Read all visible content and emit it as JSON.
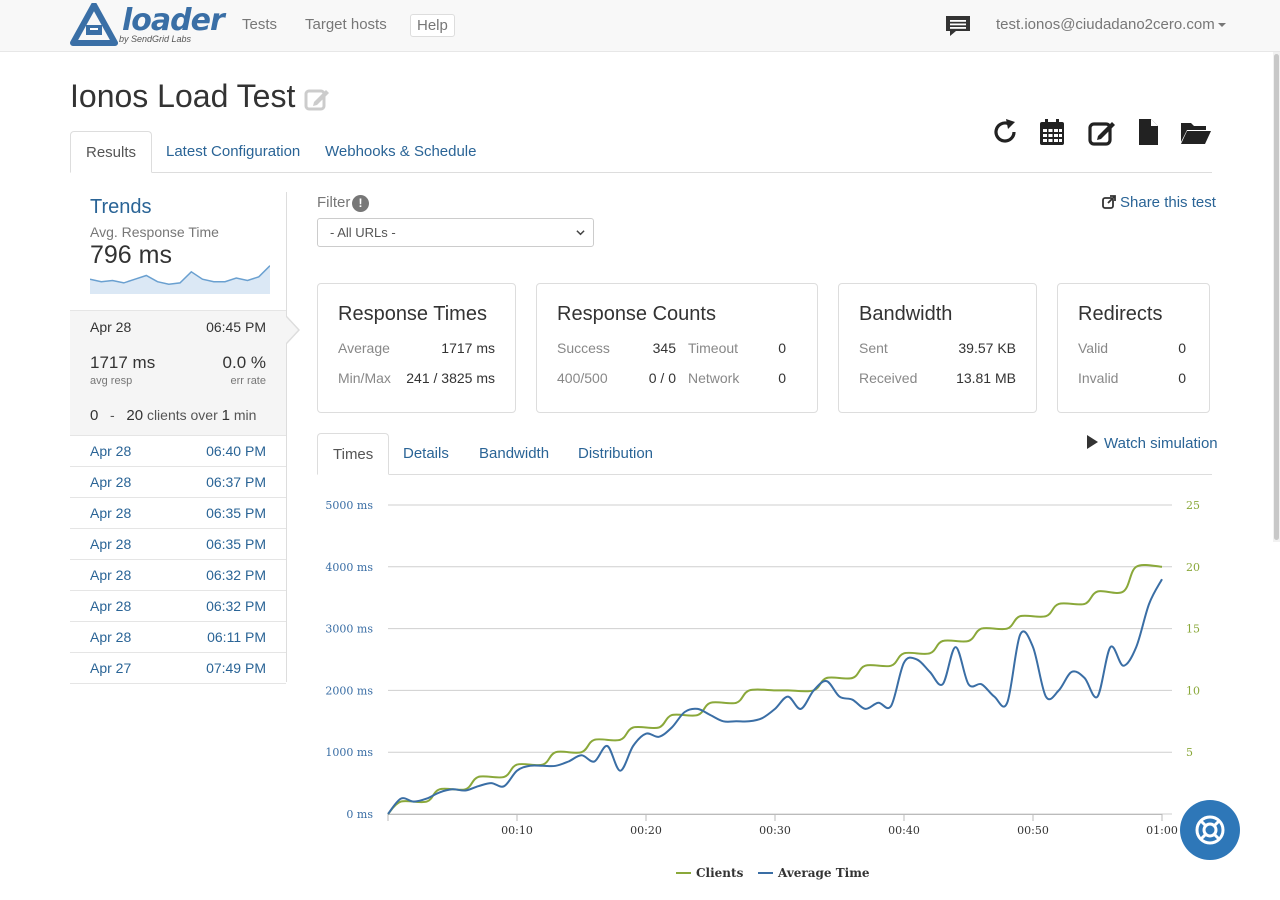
{
  "brand": {
    "name": "loader",
    "sub": "by SendGrid Labs"
  },
  "nav": {
    "tests": "Tests",
    "target_hosts": "Target hosts",
    "help": "Help",
    "user": "test.ionos@ciudadano2cero.com"
  },
  "page": {
    "title": "Ionos Load Test"
  },
  "tabs": [
    "Results",
    "Latest Configuration",
    "Webhooks & Schedule"
  ],
  "trends": {
    "title": "Trends",
    "metric": "Avg. Response Time",
    "value": "796 ms"
  },
  "current_run": {
    "date": "Apr 28",
    "time": "06:45 PM",
    "avg_resp": "1717 ms",
    "avg_resp_label": "avg resp",
    "err_rate": "0.0 %",
    "err_rate_label": "err rate",
    "clients_from": "0",
    "dash": "-",
    "clients_to": "20",
    "clients_text": "clients over",
    "duration": "1",
    "duration_unit": "min"
  },
  "runs": [
    {
      "date": "Apr 28",
      "time": "06:40 PM"
    },
    {
      "date": "Apr 28",
      "time": "06:37 PM"
    },
    {
      "date": "Apr 28",
      "time": "06:35 PM"
    },
    {
      "date": "Apr 28",
      "time": "06:35 PM"
    },
    {
      "date": "Apr 28",
      "time": "06:32 PM"
    },
    {
      "date": "Apr 28",
      "time": "06:32 PM"
    },
    {
      "date": "Apr 28",
      "time": "06:11 PM"
    },
    {
      "date": "Apr 27",
      "time": "07:49 PM"
    }
  ],
  "filter": {
    "label": "Filter",
    "info": "!",
    "selected": "- All URLs -"
  },
  "share": "Share this test",
  "cards": {
    "response_times": {
      "title": "Response Times",
      "average_label": "Average",
      "average": "1717 ms",
      "minmax_label": "Min/Max",
      "minmax": "241 / 3825 ms"
    },
    "response_counts": {
      "title": "Response Counts",
      "success_label": "Success",
      "success": "345",
      "timeout_label": "Timeout",
      "timeout": "0",
      "err_label": "400/500",
      "err": "0 / 0",
      "network_label": "Network",
      "network": "0"
    },
    "bandwidth": {
      "title": "Bandwidth",
      "sent_label": "Sent",
      "sent": "39.57 KB",
      "received_label": "Received",
      "received": "13.81 MB"
    },
    "redirects": {
      "title": "Redirects",
      "valid_label": "Valid",
      "valid": "0",
      "invalid_label": "Invalid",
      "invalid": "0"
    }
  },
  "chart_tabs": [
    "Times",
    "Details",
    "Bandwidth",
    "Distribution"
  ],
  "watch": "Watch simulation",
  "colors": {
    "link": "#2a6496",
    "clients_series": "#8aa83a",
    "time_series": "#3a6ea5",
    "help_bubble": "#2e77b8"
  },
  "trend_values": [
    820,
    800,
    810,
    790,
    820,
    850,
    800,
    780,
    790,
    880,
    820,
    800,
    800,
    830,
    810,
    840,
    930
  ],
  "chart_data": {
    "type": "line",
    "x_ticks": [
      "00:10",
      "00:20",
      "00:30",
      "00:40",
      "00:50",
      "01:00"
    ],
    "y_left_ticks": [
      "0 ms",
      "1000 ms",
      "2000 ms",
      "3000 ms",
      "4000 ms",
      "5000 ms"
    ],
    "y_right_ticks": [
      "5",
      "10",
      "15",
      "20",
      "25"
    ],
    "xlim": [
      0,
      60
    ],
    "ylim_left": [
      0,
      5000
    ],
    "ylim_right": [
      0,
      25
    ],
    "grid": true,
    "legend_position": "bottom",
    "series": [
      {
        "name": "Clients",
        "axis": "right",
        "x": [
          0,
          1,
          3,
          4,
          6,
          7,
          9,
          10,
          12,
          13,
          15,
          16,
          18,
          19,
          21,
          22,
          24,
          25,
          27,
          28,
          30,
          31,
          33,
          34,
          36,
          37,
          39,
          40,
          42,
          43,
          45,
          46,
          48,
          49,
          51,
          52,
          54,
          55,
          57,
          58,
          60
        ],
        "y": [
          0,
          1,
          1,
          2,
          2,
          3,
          3,
          4,
          4,
          5,
          5,
          6,
          6,
          7,
          7,
          8,
          8,
          9,
          9,
          10,
          10,
          10,
          10,
          11,
          11,
          12,
          12,
          13,
          13,
          14,
          14,
          15,
          15,
          16,
          16,
          17,
          17,
          18,
          18,
          20,
          20
        ]
      },
      {
        "name": "Average Time",
        "axis": "left",
        "x": [
          0,
          1,
          2,
          3,
          4,
          5,
          6,
          7,
          8,
          9,
          10,
          11,
          12,
          13,
          14,
          15,
          16,
          17,
          18,
          19,
          20,
          21,
          22,
          23,
          24,
          25,
          26,
          27,
          28,
          29,
          30,
          31,
          32,
          33,
          34,
          35,
          36,
          37,
          38,
          39,
          40,
          41,
          42,
          43,
          44,
          45,
          46,
          47,
          48,
          49,
          50,
          51,
          52,
          53,
          54,
          55,
          56,
          57,
          58,
          59,
          60
        ],
        "y": [
          0,
          250,
          200,
          250,
          350,
          400,
          380,
          450,
          500,
          450,
          700,
          780,
          780,
          780,
          850,
          950,
          850,
          1100,
          700,
          1100,
          1300,
          1250,
          1400,
          1650,
          1700,
          1600,
          1500,
          1500,
          1500,
          1550,
          1700,
          1900,
          1700,
          2000,
          2150,
          1900,
          1850,
          1700,
          1800,
          1750,
          2450,
          2500,
          2300,
          2100,
          2700,
          2100,
          2100,
          1900,
          1800,
          2900,
          2700,
          1900,
          2000,
          2300,
          2200,
          1900,
          2700,
          2400,
          2700,
          3400,
          3800
        ]
      }
    ]
  }
}
